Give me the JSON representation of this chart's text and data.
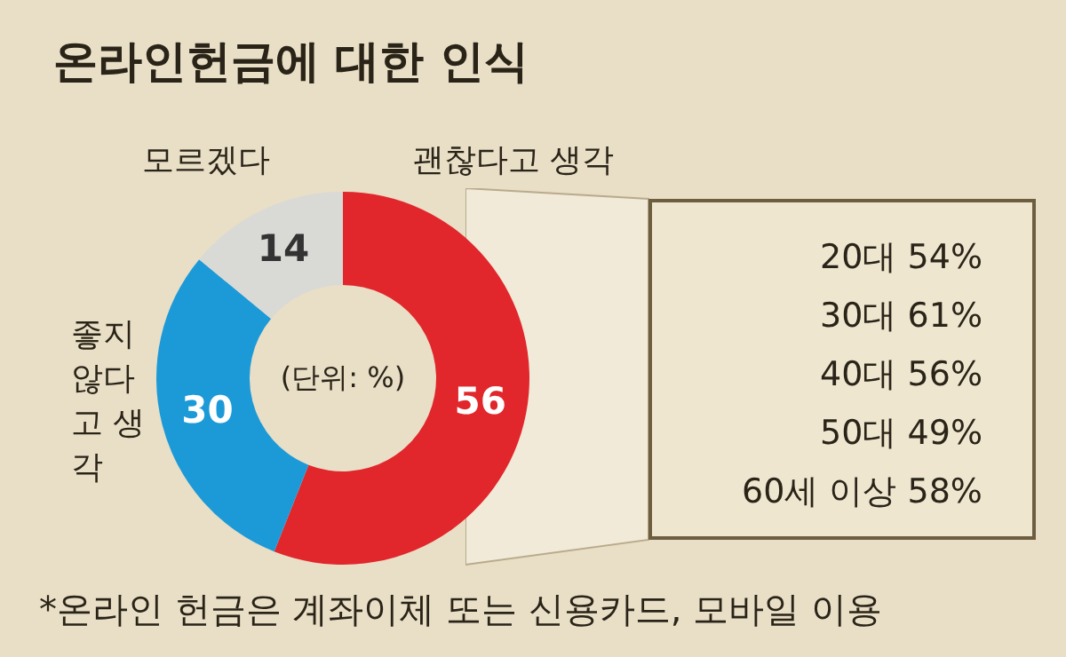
{
  "chart_data": {
    "type": "donut",
    "title": "온라인헌금에 대한 인식",
    "categories": [
      "괜찮다고 생각",
      "좋지 않다고 생각",
      "모르겠다"
    ],
    "values": [
      56,
      30,
      14
    ],
    "colors": [
      "#e1262c",
      "#1c9ad8",
      "#d9d9d6"
    ],
    "data_labels": true,
    "annotations": [
      "(단위: %)",
      "20대 54%",
      "30대 61%",
      "40대 56%",
      "50대 49%",
      "60세 이상 58%",
      "*온라인 헌금은 계좌이체 또는 신용카드, 모바일 이용"
    ]
  }
}
